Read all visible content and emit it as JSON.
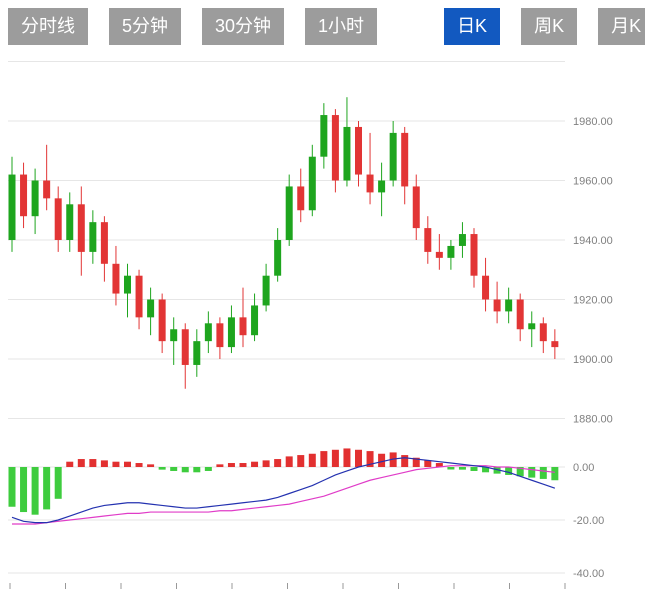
{
  "tabs": [
    {
      "label": "分时线",
      "active": false
    },
    {
      "label": "5分钟",
      "active": false
    },
    {
      "label": "30分钟",
      "active": false
    },
    {
      "label": "1小时",
      "active": false
    },
    {
      "label": "日K",
      "active": true
    },
    {
      "label": "周K",
      "active": false
    },
    {
      "label": "月K",
      "active": false
    }
  ],
  "colors": {
    "tab_bg": "#9c9c9c",
    "tab_active_bg": "#1259c0",
    "tab_text": "#ffffff",
    "up": "#1ea51e",
    "down": "#e23535",
    "macd_up": "#e23030",
    "macd_down": "#3ecc3e",
    "dif_line": "#2432b0",
    "dea_line": "#e03cc8",
    "grid": "#e6e6e6",
    "axis_text": "#808080",
    "tick_mark": "#999999"
  },
  "chart_data": {
    "type": "candlestick+macd",
    "title": "",
    "price_axis": {
      "ylim": [
        1875,
        2000
      ],
      "gridlines": [
        {
          "value": 2000,
          "label": ""
        },
        {
          "value": 1980,
          "label": "1980.00"
        },
        {
          "value": 1960,
          "label": "1960.00"
        },
        {
          "value": 1940,
          "label": "1940.00"
        },
        {
          "value": 1920,
          "label": "1920.00"
        },
        {
          "value": 1900,
          "label": "1900.00"
        },
        {
          "value": 1880,
          "label": "1880.00"
        }
      ]
    },
    "macd_axis": {
      "ylim": [
        -45,
        10
      ],
      "gridlines": [
        {
          "value": 0,
          "label": "0.00"
        },
        {
          "value": -20,
          "label": "-20.00"
        },
        {
          "value": -40,
          "label": "-40.00"
        }
      ]
    },
    "candles": [
      [
        1940,
        1968,
        1936,
        1962
      ],
      [
        1962,
        1966,
        1944,
        1948
      ],
      [
        1948,
        1964,
        1942,
        1960
      ],
      [
        1960,
        1972,
        1950,
        1954
      ],
      [
        1954,
        1958,
        1936,
        1940
      ],
      [
        1940,
        1956,
        1936,
        1952
      ],
      [
        1952,
        1958,
        1928,
        1936
      ],
      [
        1936,
        1950,
        1932,
        1946
      ],
      [
        1946,
        1948,
        1926,
        1932
      ],
      [
        1932,
        1938,
        1918,
        1922
      ],
      [
        1922,
        1932,
        1914,
        1928
      ],
      [
        1928,
        1930,
        1910,
        1914
      ],
      [
        1914,
        1924,
        1908,
        1920
      ],
      [
        1920,
        1922,
        1902,
        1906
      ],
      [
        1906,
        1914,
        1898,
        1910
      ],
      [
        1910,
        1912,
        1890,
        1898
      ],
      [
        1898,
        1910,
        1894,
        1906
      ],
      [
        1906,
        1916,
        1902,
        1912
      ],
      [
        1912,
        1914,
        1900,
        1904
      ],
      [
        1904,
        1918,
        1902,
        1914
      ],
      [
        1914,
        1924,
        1904,
        1908
      ],
      [
        1908,
        1922,
        1906,
        1918
      ],
      [
        1918,
        1932,
        1916,
        1928
      ],
      [
        1928,
        1944,
        1926,
        1940
      ],
      [
        1940,
        1962,
        1938,
        1958
      ],
      [
        1958,
        1964,
        1946,
        1950
      ],
      [
        1950,
        1972,
        1948,
        1968
      ],
      [
        1968,
        1986,
        1964,
        1982
      ],
      [
        1982,
        1984,
        1956,
        1960
      ],
      [
        1960,
        1988,
        1958,
        1978
      ],
      [
        1978,
        1980,
        1958,
        1962
      ],
      [
        1962,
        1976,
        1952,
        1956
      ],
      [
        1956,
        1966,
        1948,
        1960
      ],
      [
        1960,
        1980,
        1958,
        1976
      ],
      [
        1976,
        1978,
        1952,
        1958
      ],
      [
        1958,
        1962,
        1940,
        1944
      ],
      [
        1944,
        1948,
        1932,
        1936
      ],
      [
        1936,
        1942,
        1930,
        1934
      ],
      [
        1934,
        1940,
        1930,
        1938
      ],
      [
        1938,
        1946,
        1934,
        1942
      ],
      [
        1942,
        1944,
        1924,
        1928
      ],
      [
        1928,
        1934,
        1916,
        1920
      ],
      [
        1920,
        1926,
        1912,
        1916
      ],
      [
        1916,
        1924,
        1912,
        1920
      ],
      [
        1920,
        1922,
        1906,
        1910
      ],
      [
        1910,
        1916,
        1904,
        1912
      ],
      [
        1912,
        1914,
        1902,
        1906
      ],
      [
        1906,
        1910,
        1900,
        1904
      ]
    ],
    "macd": {
      "histogram": [
        -15,
        -17,
        -18,
        -16,
        -12,
        2,
        3,
        3,
        2.5,
        2,
        2,
        1.5,
        1,
        -1,
        -1.5,
        -2,
        -2,
        -1.5,
        1,
        1.5,
        1.5,
        2,
        2.5,
        3,
        4,
        4.5,
        5,
        6,
        6.5,
        7,
        6.5,
        6,
        5,
        5.5,
        4.5,
        3.5,
        2.5,
        1.5,
        -0.5,
        -1,
        -1.5,
        -2,
        -2.5,
        -3,
        -3.5,
        -4,
        -4.5,
        -5
      ],
      "dif": [
        -19,
        -20.5,
        -21,
        -21,
        -20,
        -18.5,
        -17,
        -15.5,
        -14.5,
        -14,
        -13.5,
        -13.5,
        -14,
        -14.5,
        -15,
        -15.5,
        -15.5,
        -15,
        -14.5,
        -14,
        -13.5,
        -13,
        -12.5,
        -11.5,
        -10,
        -8.5,
        -7,
        -5,
        -3,
        -1.5,
        0,
        1,
        2,
        3,
        3.5,
        3,
        2.5,
        2,
        1.5,
        1,
        0.5,
        0,
        -1,
        -2,
        -3.5,
        -5,
        -6.5,
        -8
      ],
      "dea": [
        -21.5,
        -21.5,
        -21.5,
        -21,
        -20.5,
        -20,
        -19.5,
        -19,
        -18.5,
        -18,
        -17.5,
        -17.5,
        -17,
        -17,
        -17,
        -17,
        -17,
        -17,
        -16.5,
        -16.5,
        -16,
        -15.5,
        -15,
        -14.5,
        -14,
        -13,
        -12,
        -11,
        -9.5,
        -8,
        -6.5,
        -5,
        -4,
        -3,
        -2,
        -1,
        -0.5,
        0,
        0.5,
        0.5,
        0.5,
        0.5,
        0,
        0,
        -0.5,
        -1,
        -1.5,
        -2
      ]
    }
  }
}
